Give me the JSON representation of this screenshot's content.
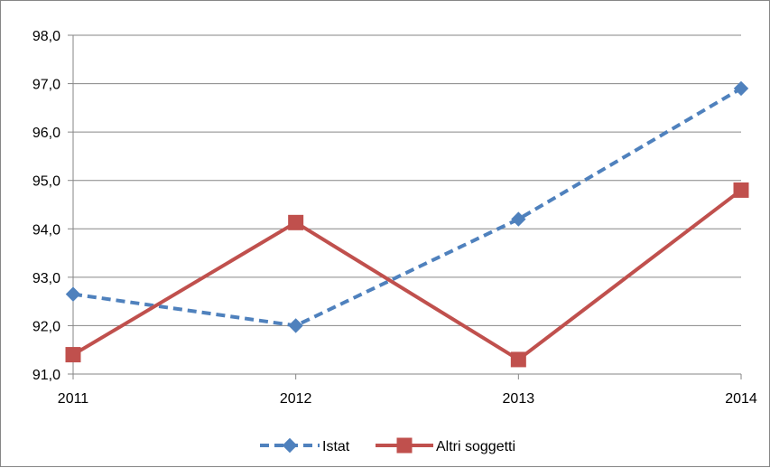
{
  "chart_data": {
    "type": "line",
    "title": "",
    "xlabel": "",
    "ylabel": "",
    "categories": [
      "2011",
      "2012",
      "2013",
      "2014"
    ],
    "ylim": [
      91.0,
      98.0
    ],
    "yticks": [
      "91,0",
      "92,0",
      "93,0",
      "94,0",
      "95,0",
      "96,0",
      "97,0",
      "98,0"
    ],
    "grid": true,
    "legend_position": "bottom",
    "series": [
      {
        "name": "Istat",
        "values": [
          92.65,
          92.0,
          94.2,
          96.9
        ],
        "color": "#4F81BD",
        "line_style": "dashed",
        "marker": "diamond"
      },
      {
        "name": "Altri soggetti",
        "values": [
          91.4,
          94.13,
          91.3,
          94.8
        ],
        "color": "#C0504D",
        "line_style": "solid",
        "marker": "square"
      }
    ]
  }
}
